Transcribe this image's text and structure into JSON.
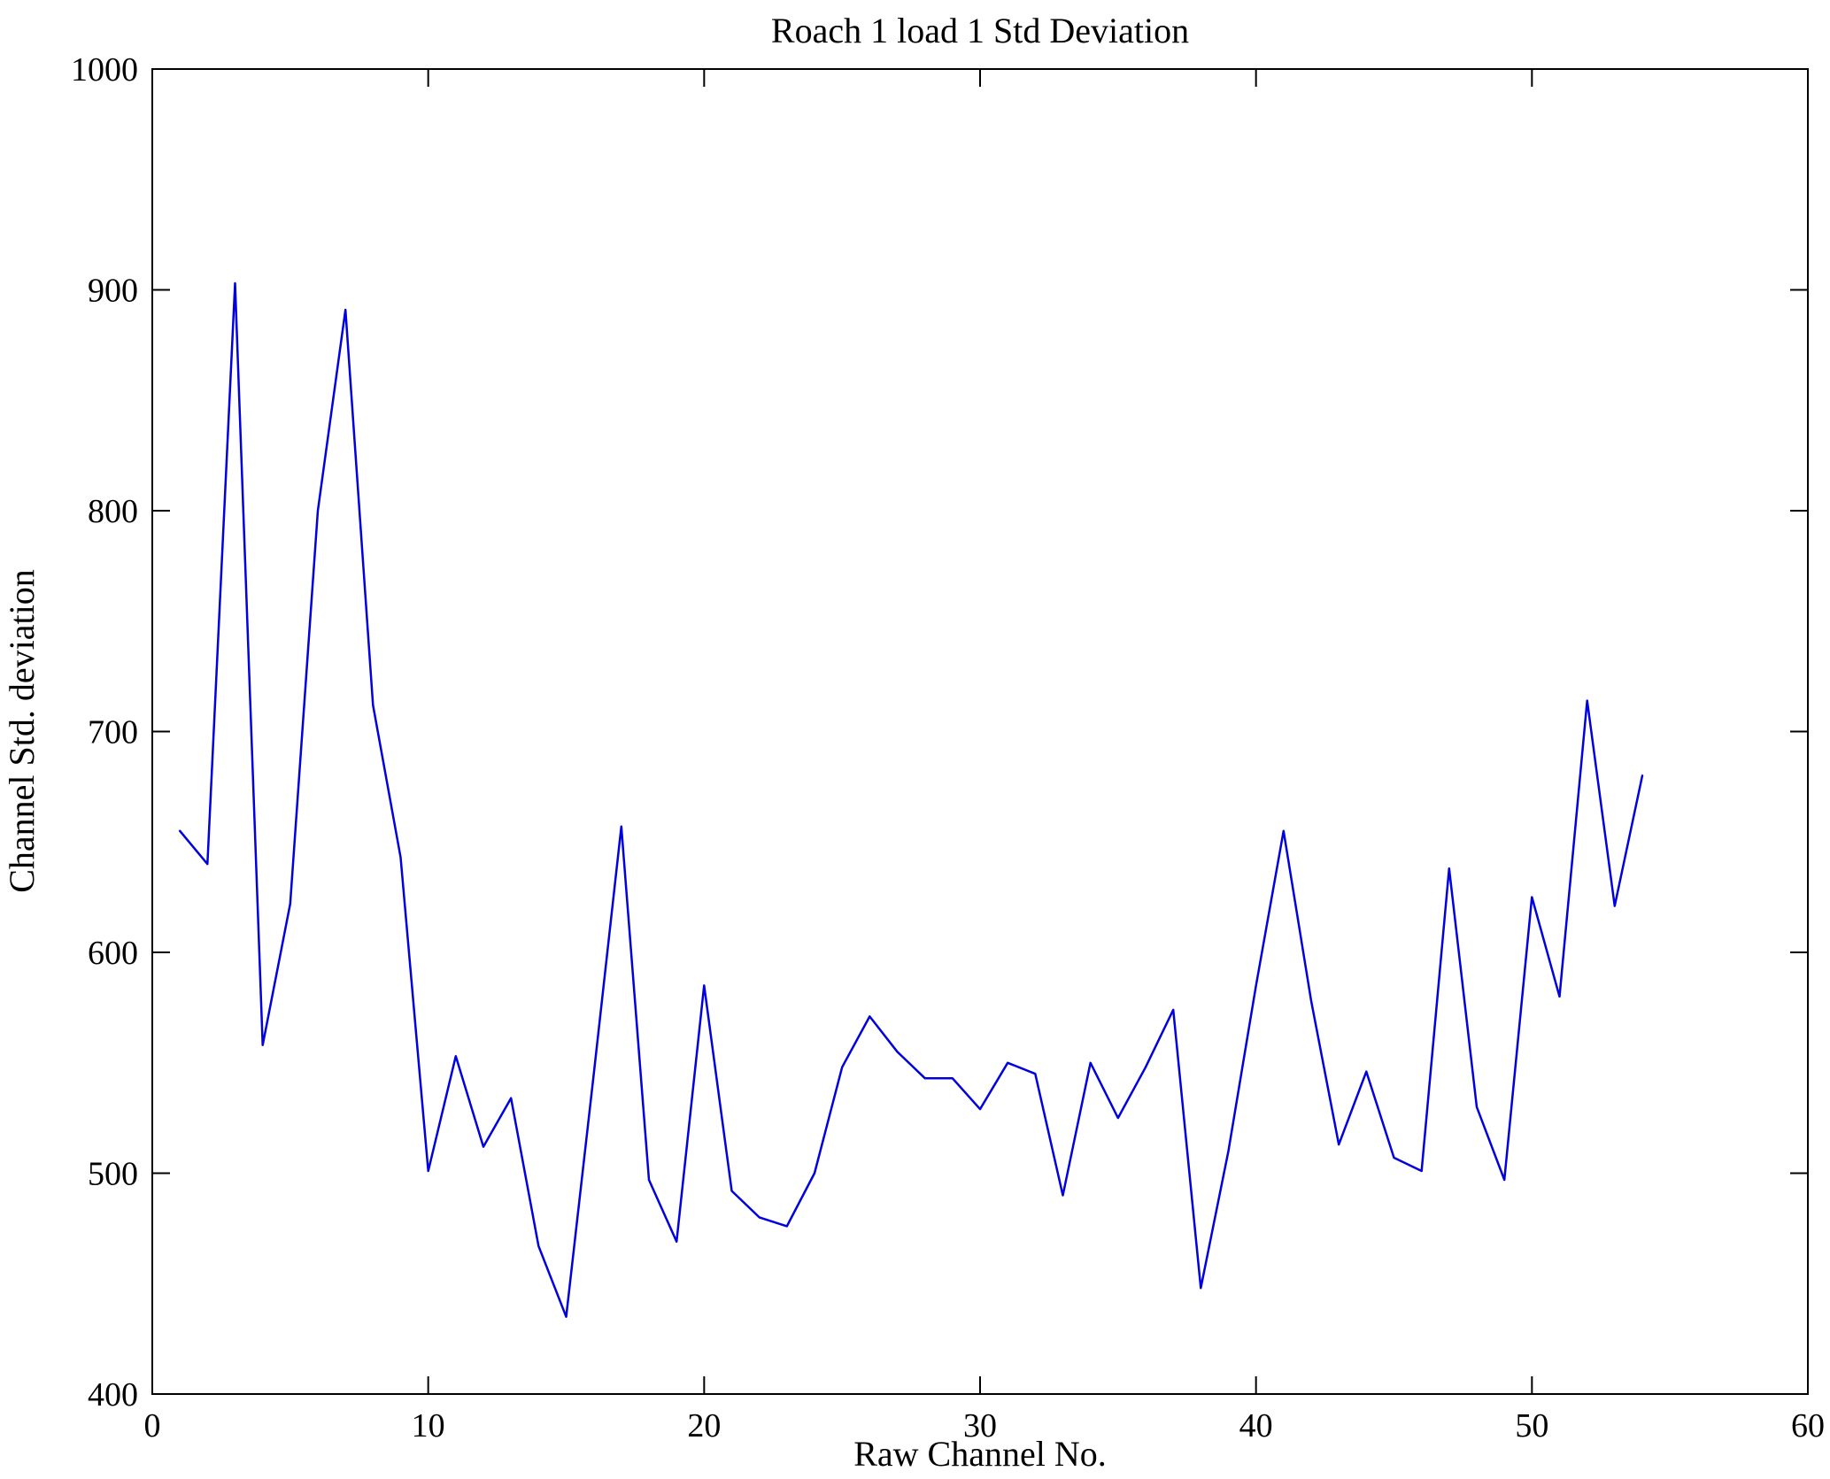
{
  "chart_data": {
    "type": "line",
    "title": "Roach 1 load 1 Std Deviation",
    "xlabel": "Raw Channel No.",
    "ylabel": "Channel Std. deviation",
    "xlim": [
      0,
      60
    ],
    "ylim": [
      400,
      1000
    ],
    "xticks": [
      0,
      10,
      20,
      30,
      40,
      50,
      60
    ],
    "yticks": [
      400,
      500,
      600,
      700,
      800,
      900,
      1000
    ],
    "grid": false,
    "legend": "none",
    "line_color": "#0000e0",
    "axis_color": "#000000",
    "series": [
      {
        "name": "Channel Std. deviation",
        "x": [
          1,
          2,
          3,
          4,
          5,
          6,
          7,
          8,
          9,
          10,
          11,
          12,
          13,
          14,
          15,
          16,
          17,
          18,
          19,
          20,
          21,
          22,
          23,
          24,
          25,
          26,
          27,
          28,
          29,
          30,
          31,
          32,
          33,
          34,
          35,
          36,
          37,
          38,
          39,
          40,
          41,
          42,
          43,
          44,
          45,
          46,
          47,
          48,
          49,
          50,
          51,
          52,
          53,
          54
        ],
        "values": [
          655,
          640,
          903,
          558,
          622,
          800,
          891,
          712,
          643,
          501,
          553,
          512,
          534,
          467,
          435,
          545,
          657,
          497,
          469,
          585,
          492,
          480,
          476,
          500,
          548,
          571,
          555,
          543,
          543,
          529,
          550,
          545,
          490,
          550,
          525,
          548,
          574,
          448,
          510,
          585,
          655,
          578,
          513,
          546,
          507,
          501,
          638,
          530,
          497,
          625,
          580,
          714,
          621,
          680
        ]
      }
    ]
  }
}
